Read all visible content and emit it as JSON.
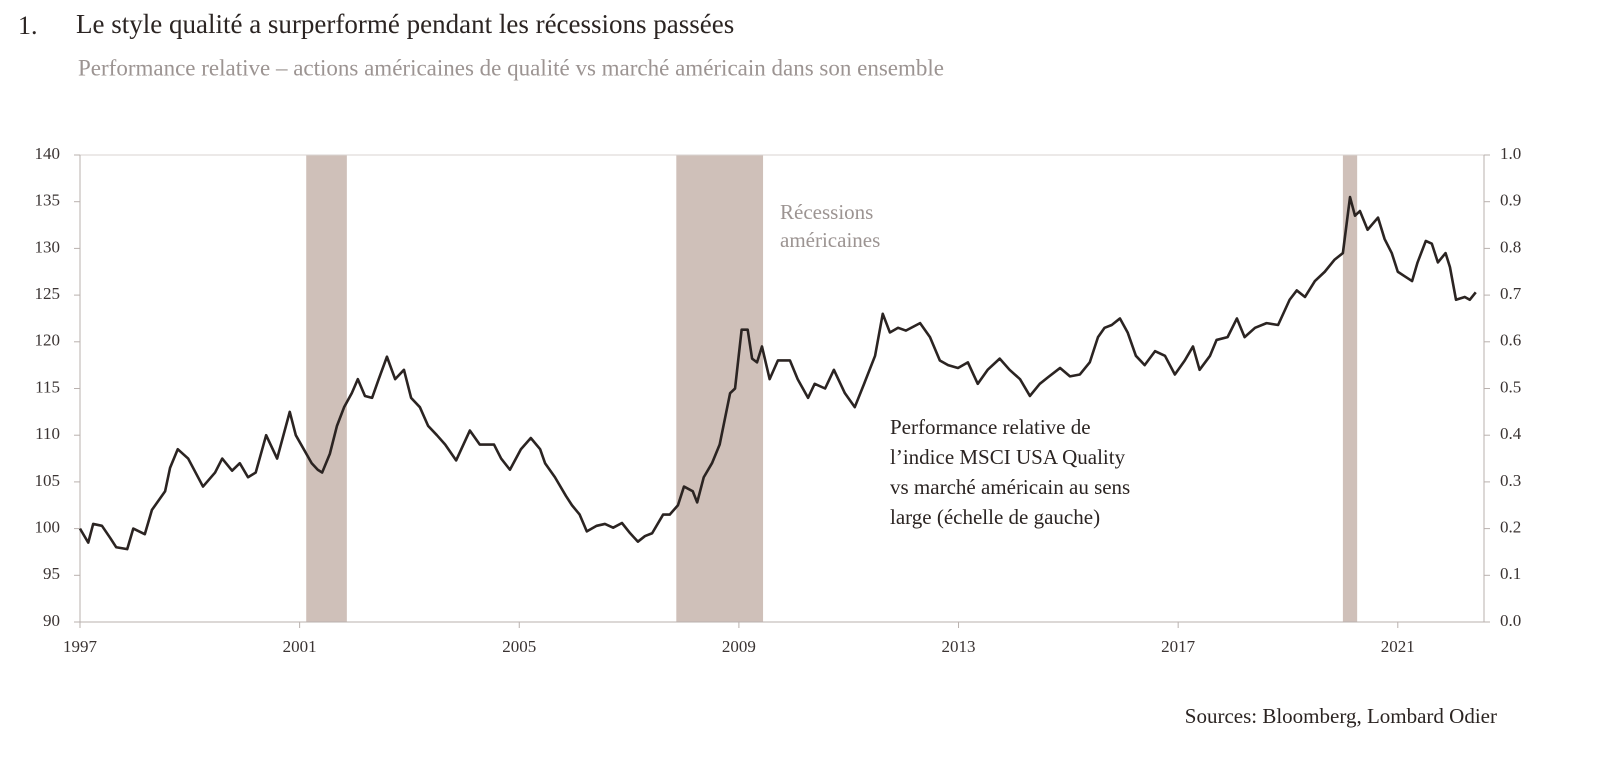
{
  "chart_data": {
    "type": "line",
    "number": "1.",
    "title": "Le style qualité a surperformé pendant les récessions passées",
    "subtitle": "Performance relative – actions américaines de qualité vs marché américain dans son ensemble",
    "source": "Sources: Bloomberg, Lombard Odier",
    "recession_label": [
      "Récessions",
      "américaines"
    ],
    "recession_color": "#cfc0b9",
    "recessions": [
      [
        2001.12,
        2001.86
      ],
      [
        2007.86,
        2009.44
      ],
      [
        2020.0,
        2020.26
      ]
    ],
    "line_label": [
      "Performance relative de",
      "l’indice MSCI USA Quality",
      "vs marché américain au sens",
      "large (échelle de gauche)"
    ],
    "xlim": [
      1997,
      2022.57
    ],
    "xticks": [
      1997,
      2001,
      2005,
      2009,
      2013,
      2017,
      2021
    ],
    "ylim": [
      90,
      140
    ],
    "yticks": [
      90,
      95,
      100,
      105,
      110,
      115,
      120,
      125,
      130,
      135,
      140
    ],
    "y2lim": [
      0,
      1
    ],
    "y2ticks": [
      {
        "value": 0,
        "label": "0.0"
      },
      0.1,
      0.2,
      0.3,
      0.4,
      0.5,
      0.6,
      0.7,
      0.8,
      0.9,
      {
        "value": 1,
        "label": "1.0"
      }
    ],
    "series": [
      {
        "color": "#2b2422",
        "x": [
          1997.0,
          1997.15,
          1997.24,
          1997.4,
          1997.55,
          1997.66,
          1997.86,
          1997.97,
          1998.18,
          1998.31,
          1998.55,
          1998.64,
          1998.78,
          1998.97,
          1999.24,
          1999.46,
          1999.59,
          1999.77,
          1999.91,
          2000.06,
          2000.2,
          2000.39,
          2000.59,
          2000.82,
          2000.93,
          2001.22,
          2001.33,
          2001.41,
          2001.55,
          2001.68,
          2001.81,
          2001.95,
          2002.06,
          2002.19,
          2002.32,
          2002.44,
          2002.59,
          2002.74,
          2002.9,
          2003.03,
          2003.19,
          2003.34,
          2003.5,
          2003.65,
          2003.85,
          2004.1,
          2004.28,
          2004.54,
          2004.67,
          2004.83,
          2005.03,
          2005.21,
          2005.38,
          2005.47,
          2005.65,
          2005.85,
          2005.96,
          2006.1,
          2006.23,
          2006.41,
          2006.56,
          2006.71,
          2006.87,
          2007.02,
          2007.16,
          2007.29,
          2007.42,
          2007.62,
          2007.74,
          2007.89,
          2008.0,
          2008.16,
          2008.24,
          2008.36,
          2008.51,
          2008.65,
          2008.84,
          2008.93,
          2009.05,
          2009.16,
          2009.24,
          2009.33,
          2009.42,
          2009.56,
          2009.71,
          2009.93,
          2010.07,
          2010.26,
          2010.38,
          2010.57,
          2010.73,
          2010.93,
          2011.11,
          2011.28,
          2011.48,
          2011.62,
          2011.75,
          2011.9,
          2012.04,
          2012.3,
          2012.48,
          2012.66,
          2012.81,
          2012.99,
          2013.17,
          2013.35,
          2013.53,
          2013.75,
          2013.93,
          2014.12,
          2014.3,
          2014.48,
          2014.63,
          2014.85,
          2015.03,
          2015.21,
          2015.39,
          2015.54,
          2015.66,
          2015.79,
          2015.94,
          2016.08,
          2016.23,
          2016.39,
          2016.58,
          2016.76,
          2016.94,
          2017.12,
          2017.27,
          2017.39,
          2017.58,
          2017.7,
          2017.9,
          2018.07,
          2018.21,
          2018.4,
          2018.61,
          2018.82,
          2019.03,
          2019.16,
          2019.31,
          2019.49,
          2019.67,
          2019.85,
          2020.0,
          2020.13,
          2020.22,
          2020.31,
          2020.45,
          2020.64,
          2020.76,
          2020.89,
          2021.0,
          2021.13,
          2021.26,
          2021.36,
          2021.51,
          2021.62,
          2021.73,
          2021.87,
          2021.95,
          2022.06,
          2022.22,
          2022.31,
          2022.42
        ],
        "values": [
          100,
          98.5,
          100.5,
          100.3,
          99,
          98,
          97.8,
          100,
          99.4,
          102,
          104,
          106.5,
          108.5,
          107.5,
          104.5,
          106,
          107.5,
          106.2,
          107,
          105.5,
          106,
          110,
          107.5,
          112.5,
          110,
          107,
          106.3,
          106,
          108,
          111,
          113,
          114.5,
          116,
          114.2,
          114,
          116,
          118.4,
          116,
          117,
          114,
          113,
          111,
          110,
          109,
          107.3,
          110.5,
          109,
          109,
          107.5,
          106.3,
          108.5,
          109.7,
          108.5,
          107,
          105.5,
          103.5,
          102.5,
          101.5,
          99.7,
          100.3,
          100.5,
          100.1,
          100.6,
          99.5,
          98.6,
          99.2,
          99.5,
          101.5,
          101.5,
          102.5,
          104.5,
          104,
          102.8,
          105.5,
          107,
          109,
          114.5,
          115,
          121.3,
          121.3,
          118.2,
          117.8,
          119.5,
          116,
          118,
          118,
          116,
          114,
          115.5,
          115,
          117,
          114.5,
          113,
          115.5,
          118.5,
          123,
          121,
          121.5,
          121.2,
          122,
          120.5,
          118,
          117.5,
          117.2,
          117.8,
          115.5,
          117,
          118.2,
          117,
          116,
          114.2,
          115.5,
          116.2,
          117.2,
          116.3,
          116.5,
          117.8,
          120.5,
          121.5,
          121.8,
          122.5,
          121,
          118.5,
          117.5,
          119,
          118.5,
          116.5,
          118,
          119.5,
          117,
          118.5,
          120.2,
          120.5,
          122.5,
          120.5,
          121.5,
          122,
          121.8,
          124.5,
          125.5,
          124.8,
          126.5,
          127.5,
          128.8,
          129.5,
          135.5,
          133.5,
          134,
          132,
          133.3,
          131,
          129.5,
          127.5,
          127,
          126.5,
          128.5,
          130.8,
          130.5,
          128.5,
          129.5,
          128,
          124.5,
          124.8,
          124.5,
          125.3
        ]
      }
    ]
  }
}
